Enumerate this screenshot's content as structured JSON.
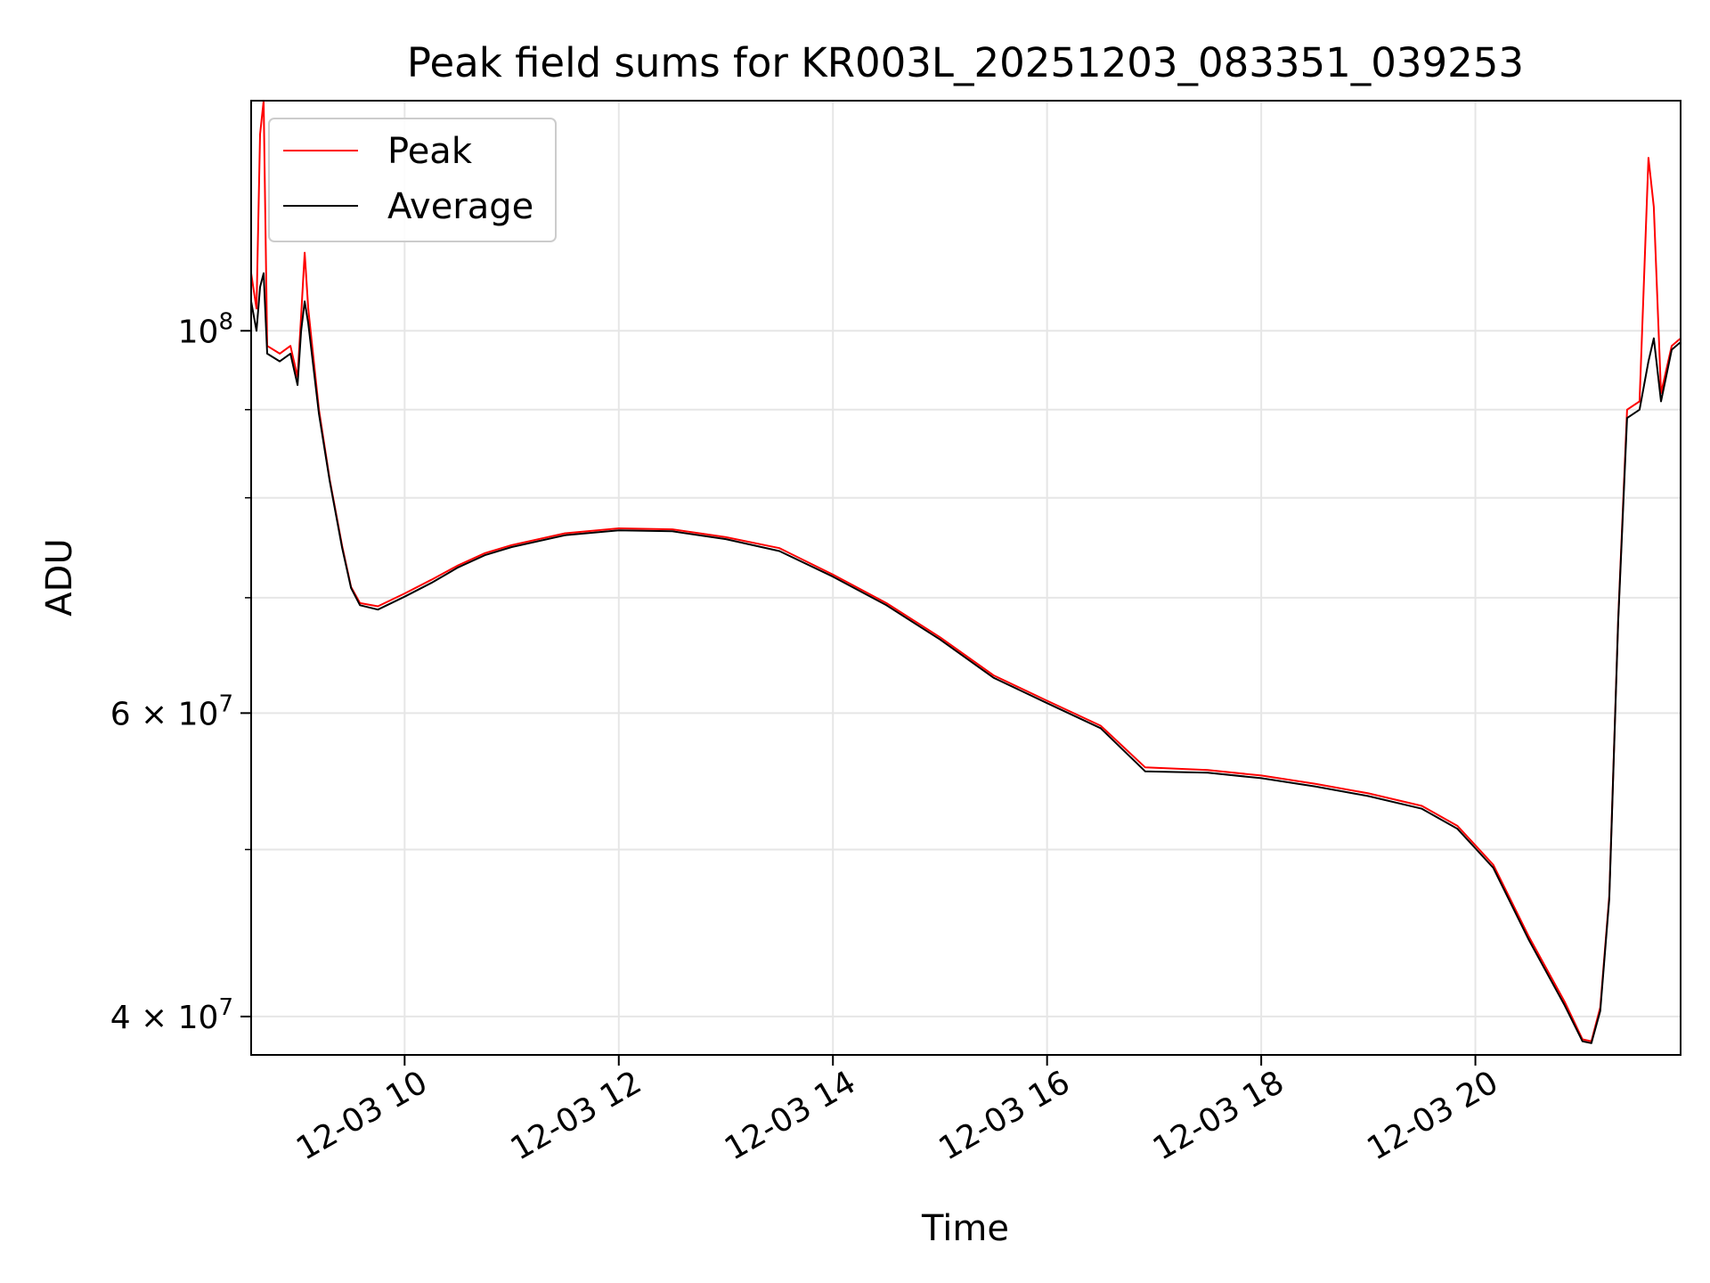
{
  "chart_data": {
    "type": "line",
    "title": "Peak field sums for KR003L_20251203_083351_039253",
    "xlabel": "Time",
    "ylabel": "ADU",
    "x_range": [
      "2025-12-03T08:34",
      "2025-12-03T21:55"
    ],
    "y_range": [
      38000000,
      136000000
    ],
    "y_scale": "log",
    "x_ticks": [
      {
        "t": "2025-12-03T10:00",
        "label": "12-03 10"
      },
      {
        "t": "2025-12-03T12:00",
        "label": "12-03 12"
      },
      {
        "t": "2025-12-03T14:00",
        "label": "12-03 14"
      },
      {
        "t": "2025-12-03T16:00",
        "label": "12-03 16"
      },
      {
        "t": "2025-12-03T18:00",
        "label": "12-03 18"
      },
      {
        "t": "2025-12-03T20:00",
        "label": "12-03 20"
      }
    ],
    "y_major_ticks": [
      {
        "v": 40000000,
        "base": "4",
        "exp": "7"
      },
      {
        "v": 60000000,
        "base": "6",
        "exp": "7"
      },
      {
        "v": 100000000,
        "base": "",
        "exp": "8"
      }
    ],
    "y_minor_ticks": [
      50000000,
      70000000,
      80000000,
      90000000
    ],
    "grid": true,
    "legend_position": "top-left",
    "series": [
      {
        "name": "Peak",
        "color": "#ff0000",
        "points": [
          [
            "08:34",
            108000000
          ],
          [
            "08:37",
            103000000
          ],
          [
            "08:39",
            130000000
          ],
          [
            "08:41",
            136000000
          ],
          [
            "08:43",
            98000000
          ],
          [
            "08:50",
            97000000
          ],
          [
            "08:56",
            98000000
          ],
          [
            "09:00",
            94000000
          ],
          [
            "09:02",
            102000000
          ],
          [
            "09:04",
            111000000
          ],
          [
            "09:06",
            103000000
          ],
          [
            "09:12",
            90000000
          ],
          [
            "09:18",
            82000000
          ],
          [
            "09:25",
            75000000
          ],
          [
            "09:30",
            71000000
          ],
          [
            "09:35",
            69500000
          ],
          [
            "09:45",
            69200000
          ],
          [
            "10:00",
            70400000
          ],
          [
            "10:15",
            71700000
          ],
          [
            "10:30",
            73100000
          ],
          [
            "10:45",
            74300000
          ],
          [
            "11:00",
            75100000
          ],
          [
            "11:30",
            76300000
          ],
          [
            "12:00",
            76800000
          ],
          [
            "12:30",
            76700000
          ],
          [
            "13:00",
            75900000
          ],
          [
            "13:30",
            74800000
          ],
          [
            "14:00",
            72200000
          ],
          [
            "14:30",
            69500000
          ],
          [
            "15:00",
            66400000
          ],
          [
            "15:30",
            63100000
          ],
          [
            "16:00",
            61000000
          ],
          [
            "16:30",
            59000000
          ],
          [
            "16:55",
            55800000
          ],
          [
            "17:30",
            55600000
          ],
          [
            "18:00",
            55200000
          ],
          [
            "18:30",
            54600000
          ],
          [
            "19:00",
            53900000
          ],
          [
            "19:30",
            53000000
          ],
          [
            "19:50",
            51600000
          ],
          [
            "20:10",
            49000000
          ],
          [
            "20:30",
            44500000
          ],
          [
            "20:50",
            40800000
          ],
          [
            "21:00",
            38800000
          ],
          [
            "21:05",
            38700000
          ],
          [
            "21:10",
            40500000
          ],
          [
            "21:15",
            47000000
          ],
          [
            "21:20",
            68000000
          ],
          [
            "21:25",
            90000000
          ],
          [
            "21:32",
            91000000
          ],
          [
            "21:37",
            126000000
          ],
          [
            "21:40",
            118000000
          ],
          [
            "21:44",
            92000000
          ],
          [
            "21:50",
            98000000
          ],
          [
            "21:55",
            99000000
          ]
        ]
      },
      {
        "name": "Average",
        "color": "#000000",
        "points": [
          [
            "08:34",
            104000000
          ],
          [
            "08:37",
            100000000
          ],
          [
            "08:39",
            106000000
          ],
          [
            "08:41",
            108000000
          ],
          [
            "08:43",
            97000000
          ],
          [
            "08:50",
            96000000
          ],
          [
            "08:56",
            97000000
          ],
          [
            "09:00",
            93000000
          ],
          [
            "09:02",
            100000000
          ],
          [
            "09:04",
            104000000
          ],
          [
            "09:06",
            101000000
          ],
          [
            "09:12",
            89500000
          ],
          [
            "09:18",
            81800000
          ],
          [
            "09:25",
            74800000
          ],
          [
            "09:30",
            70900000
          ],
          [
            "09:35",
            69300000
          ],
          [
            "09:45",
            68900000
          ],
          [
            "10:00",
            70100000
          ],
          [
            "10:15",
            71400000
          ],
          [
            "10:30",
            72900000
          ],
          [
            "10:45",
            74100000
          ],
          [
            "11:00",
            74900000
          ],
          [
            "11:30",
            76100000
          ],
          [
            "12:00",
            76600000
          ],
          [
            "12:30",
            76500000
          ],
          [
            "13:00",
            75700000
          ],
          [
            "13:30",
            74500000
          ],
          [
            "14:00",
            72000000
          ],
          [
            "14:30",
            69300000
          ],
          [
            "15:00",
            66200000
          ],
          [
            "15:30",
            62900000
          ],
          [
            "16:00",
            60800000
          ],
          [
            "16:30",
            58800000
          ],
          [
            "16:55",
            55500000
          ],
          [
            "17:30",
            55400000
          ],
          [
            "18:00",
            55000000
          ],
          [
            "18:30",
            54400000
          ],
          [
            "19:00",
            53700000
          ],
          [
            "19:30",
            52800000
          ],
          [
            "19:50",
            51400000
          ],
          [
            "20:10",
            48800000
          ],
          [
            "20:30",
            44300000
          ],
          [
            "20:50",
            40600000
          ],
          [
            "21:00",
            38700000
          ],
          [
            "21:05",
            38600000
          ],
          [
            "21:10",
            40300000
          ],
          [
            "21:15",
            46800000
          ],
          [
            "21:20",
            67800000
          ],
          [
            "21:25",
            89000000
          ],
          [
            "21:32",
            90000000
          ],
          [
            "21:37",
            96000000
          ],
          [
            "21:40",
            99000000
          ],
          [
            "21:44",
            91000000
          ],
          [
            "21:50",
            97500000
          ],
          [
            "21:55",
            98500000
          ]
        ]
      }
    ]
  }
}
